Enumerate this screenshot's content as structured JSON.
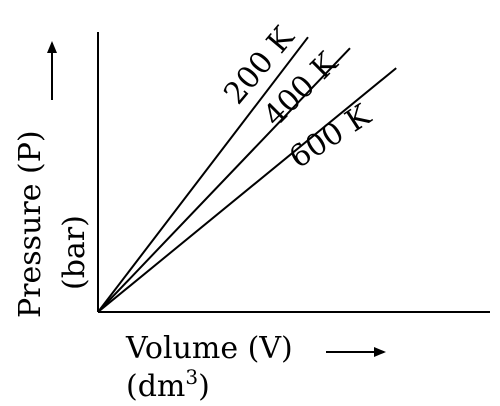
{
  "chart_data": {
    "type": "line",
    "title": "",
    "xlabel": "Volume (V)",
    "xlabel_unit_prefix": "(dm",
    "xlabel_unit_exp": "3",
    "xlabel_unit_suffix": ")",
    "ylabel": "Pressure (P)",
    "ylabel_unit": "(bar)",
    "grid": false,
    "legend": "none",
    "series": [
      {
        "name": "200 K",
        "x": [
          0,
          1
        ],
        "y": [
          0,
          1.0
        ]
      },
      {
        "name": "400 K",
        "x": [
          0,
          1
        ],
        "y": [
          0,
          0.8
        ]
      },
      {
        "name": "600 K",
        "x": [
          0,
          1
        ],
        "y": [
          0,
          0.625
        ]
      }
    ],
    "axis_arrows": {
      "x": true,
      "y": true
    }
  }
}
